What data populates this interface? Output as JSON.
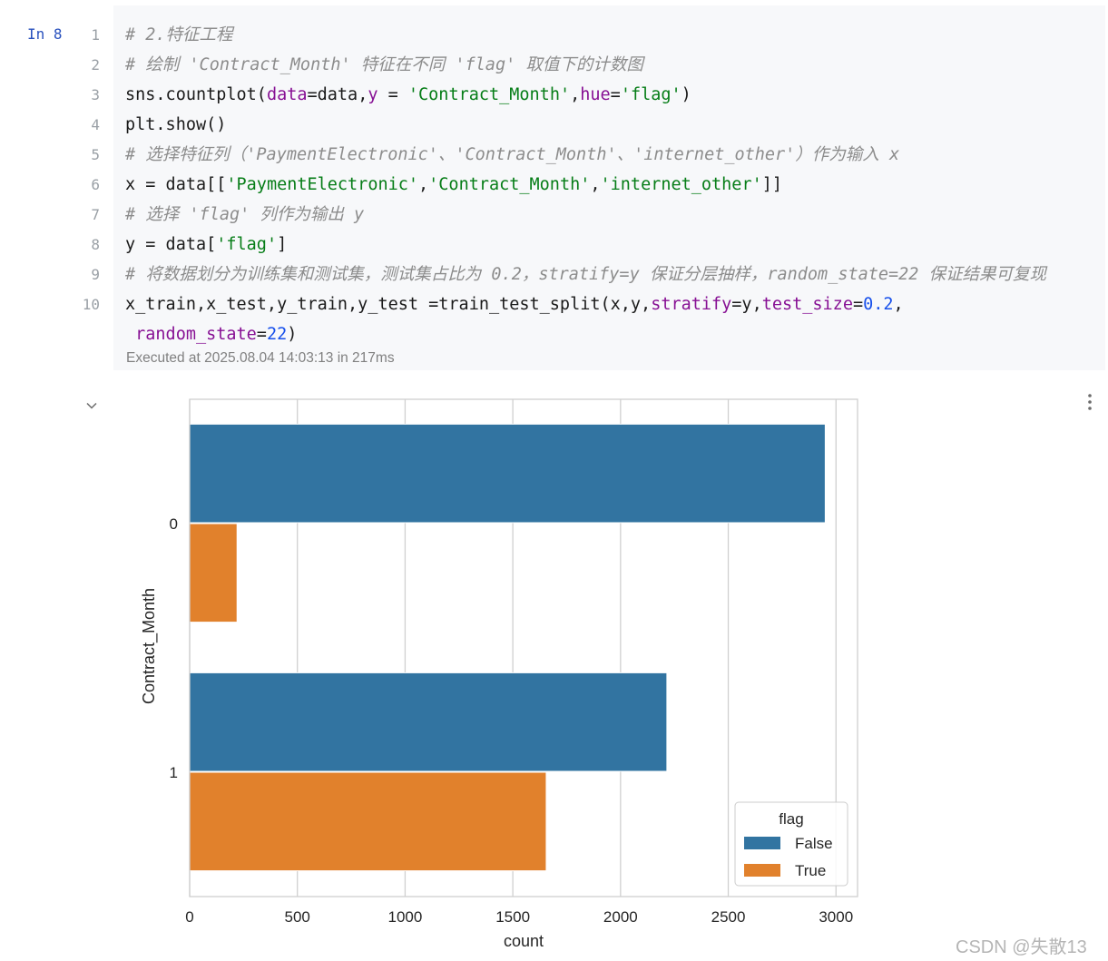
{
  "cell": {
    "prompt": "In 8",
    "line_numbers": [
      "1",
      "2",
      "3",
      "4",
      "5",
      "6",
      "7",
      "8",
      "9",
      "10"
    ],
    "lines": [
      [
        {
          "t": "# 2.特征工程",
          "c": "cm"
        }
      ],
      [
        {
          "t": "# 绘制 'Contract_Month' 特征在不同 'flag' 取值下的计数图",
          "c": "cm"
        }
      ],
      [
        {
          "t": "sns.countplot(",
          "c": ""
        },
        {
          "t": "data",
          "c": "kw"
        },
        {
          "t": "=data,",
          "c": ""
        },
        {
          "t": "y",
          "c": "kw"
        },
        {
          "t": " = ",
          "c": ""
        },
        {
          "t": "'Contract_Month'",
          "c": "str"
        },
        {
          "t": ",",
          "c": ""
        },
        {
          "t": "hue",
          "c": "kw"
        },
        {
          "t": "=",
          "c": ""
        },
        {
          "t": "'flag'",
          "c": "str"
        },
        {
          "t": ")",
          "c": ""
        }
      ],
      [
        {
          "t": "plt.show()",
          "c": ""
        }
      ],
      [
        {
          "t": "# 选择特征列（'PaymentElectronic'、'Contract_Month'、'internet_other'）作为输入 x",
          "c": "cm"
        }
      ],
      [
        {
          "t": "x = data[[",
          "c": ""
        },
        {
          "t": "'PaymentElectronic'",
          "c": "str"
        },
        {
          "t": ",",
          "c": ""
        },
        {
          "t": "'Contract_Month'",
          "c": "str"
        },
        {
          "t": ",",
          "c": ""
        },
        {
          "t": "'internet_other'",
          "c": "str"
        },
        {
          "t": "]]",
          "c": ""
        }
      ],
      [
        {
          "t": "# 选择 'flag' 列作为输出 y",
          "c": "cm"
        }
      ],
      [
        {
          "t": "y = data[",
          "c": ""
        },
        {
          "t": "'flag'",
          "c": "str"
        },
        {
          "t": "]",
          "c": ""
        }
      ],
      [
        {
          "t": "# 将数据划分为训练集和测试集，测试集占比为 0.2，stratify=y 保证分层抽样，random_state=22 保证结果可复现",
          "c": "cm"
        }
      ],
      [
        {
          "t": "x_train,x_test,y_train,y_test =train_test_split(x,y,",
          "c": ""
        },
        {
          "t": "stratify",
          "c": "kw"
        },
        {
          "t": "=y,",
          "c": ""
        },
        {
          "t": "test_size",
          "c": "kw"
        },
        {
          "t": "=",
          "c": ""
        },
        {
          "t": "0.2",
          "c": "num"
        },
        {
          "t": ",",
          "c": ""
        }
      ],
      [
        {
          "t": " ",
          "c": ""
        },
        {
          "t": "random_state",
          "c": "kw"
        },
        {
          "t": "=",
          "c": ""
        },
        {
          "t": "22",
          "c": "num"
        },
        {
          "t": ")",
          "c": ""
        }
      ]
    ],
    "executed": "Executed at 2025.08.04 14:03:13 in 217ms"
  },
  "output_icons": {
    "collapse": "chevron-down-icon",
    "menu": "more-vertical-icon"
  },
  "chart_data": {
    "type": "bar",
    "orientation": "horizontal",
    "categories": [
      "0",
      "1"
    ],
    "series": [
      {
        "name": "False",
        "color": "#3274a1",
        "values": [
          2950,
          2215
        ]
      },
      {
        "name": "True",
        "color": "#e1812c",
        "values": [
          220,
          1655
        ]
      }
    ],
    "xlabel": "count",
    "ylabel": "Contract_Month",
    "xticks": [
      0,
      500,
      1000,
      1500,
      2000,
      2500,
      3000
    ],
    "xlim": [
      0,
      3100
    ],
    "grid": "vertical",
    "legend": {
      "title": "flag",
      "placement": "lower-right"
    }
  },
  "watermark": "CSDN @失散13"
}
